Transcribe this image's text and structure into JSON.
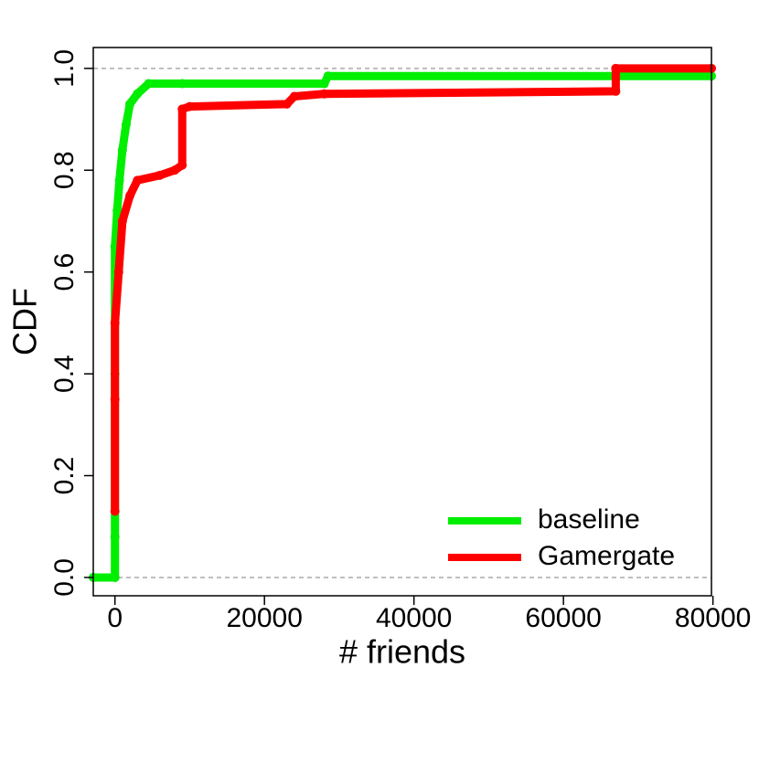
{
  "chart_data": {
    "type": "line",
    "x_label": "# friends",
    "y_label": "CDF",
    "xlim": [
      -2900,
      79800
    ],
    "ylim": [
      -0.036,
      1.041
    ],
    "xticks": [
      0,
      20000,
      40000,
      60000,
      80000
    ],
    "yticks": [
      {
        "value": 0,
        "label": "0.0"
      },
      {
        "value": 0.2,
        "label": "0.2"
      },
      {
        "value": 0.4,
        "label": "0.4"
      },
      {
        "value": 0.6,
        "label": "0.6"
      },
      {
        "value": 0.8,
        "label": "0.8"
      },
      {
        "value": 1,
        "label": "1.0"
      }
    ],
    "hlines": [
      0,
      1
    ],
    "legend": "bottom-right",
    "series": [
      {
        "name": "baseline",
        "color": "#00ee00",
        "x": [
          -2900,
          0,
          0,
          0,
          0,
          300,
          600,
          1000,
          1500,
          2000,
          3000,
          4500,
          9000,
          28000,
          28500,
          79800
        ],
        "values": [
          0,
          0,
          0.08,
          0.4,
          0.65,
          0.72,
          0.78,
          0.84,
          0.89,
          0.93,
          0.95,
          0.97,
          0.97,
          0.97,
          0.985,
          0.985
        ]
      },
      {
        "name": "Gamergate",
        "color": "#ff0000",
        "x": [
          0,
          0,
          0,
          500,
          1000,
          2000,
          3000,
          6000,
          8000,
          9000,
          9000,
          10000,
          23000,
          24000,
          28000,
          67000,
          67000,
          79800
        ],
        "values": [
          0.13,
          0.35,
          0.5,
          0.6,
          0.7,
          0.75,
          0.78,
          0.79,
          0.8,
          0.81,
          0.92,
          0.925,
          0.93,
          0.945,
          0.95,
          0.955,
          1,
          1
        ]
      }
    ]
  }
}
